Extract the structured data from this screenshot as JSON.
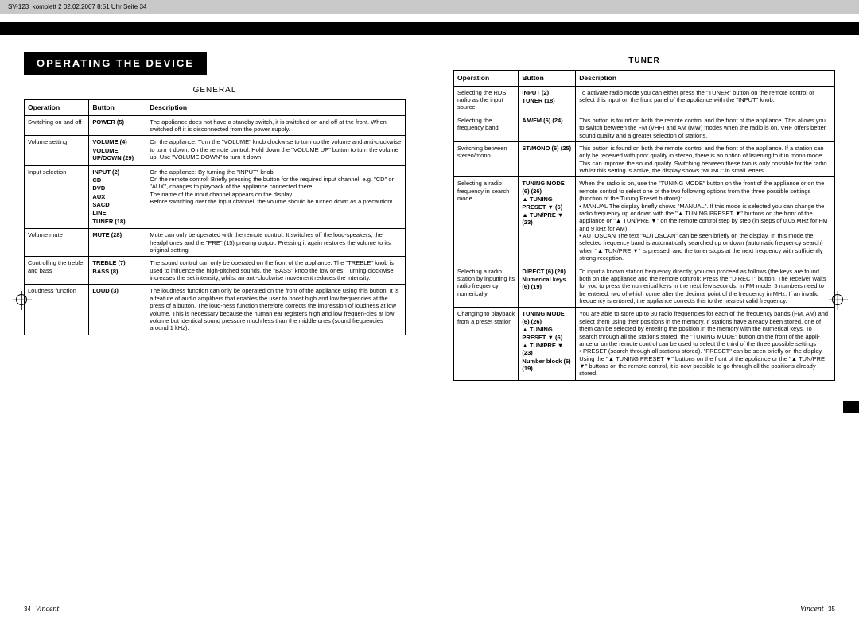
{
  "header_text": "SV-123_komplett 2  02.02.2007  8:51 Uhr  Seite 34",
  "section_title": "OPERATING THE DEVICE",
  "left": {
    "sub_title": "GENERAL",
    "columns": [
      "Operation",
      "Button",
      "Description"
    ],
    "rows": [
      {
        "op": "Switching on and off",
        "btn": [
          {
            "t": "POWER (5)"
          }
        ],
        "desc": "The appliance does not have a standby switch, it is switched on and off at the front. When switched off it is disconnected from the power supply."
      },
      {
        "op": "Volume setting",
        "btn": [
          {
            "t": "VOLUME (4)"
          },
          {
            "t": "VOLUME UP/DOWN (29)"
          }
        ],
        "desc": "On the appliance: Turn the \"VOLUME\" knob clockwise to turn up the volume and anti-clockwise to turn it down. On the remote control: Hold down the \"VOLUME UP\" button to turn the volume up. Use \"VOLUME DOWN\" to turn it down."
      },
      {
        "op": "Input selection",
        "btn": [
          {
            "t": "INPUT (2)"
          },
          {
            "t": "CD"
          },
          {
            "t": "DVD"
          },
          {
            "t": "AUX"
          },
          {
            "t": "SACD"
          },
          {
            "t": "LINE"
          },
          {
            "t": "TUNER (18)"
          }
        ],
        "desc": "On the appliance: By turning the \"INPUT\" knob.\nOn the remote control: Briefly pressing the button for the required input channel, e.g. \"CD\" or \"AUX\", changes to playback of the appliance connected there.\nThe name of the input channel appears on the display.\nBefore switching over the input channel, the volume should be turned down as a precaution!"
      },
      {
        "op": "Volume mute",
        "btn": [
          {
            "t": "MUTE (28)"
          }
        ],
        "desc": "Mute can only be operated with the remote control. It switches off the loud-speakers, the headphones and the \"PRE\" (15) preamp output. Pressing it again restores the volume to its original setting."
      },
      {
        "op": "Controlling the treble and bass",
        "btn": [
          {
            "t": "TREBLE (7)"
          },
          {
            "t": "BASS (8)"
          }
        ],
        "desc": "The sound control can only be operated on the front of the appliance. The \"TREBLE\" knob is used to influence the high-pitched sounds, the \"BASS\" knob the low ones. Turning clockwise increases the set intensity, whilst an anti-clockwise movement reduces the intensity."
      },
      {
        "op": "Loudness function",
        "btn": [
          {
            "t": "LOUD (3)"
          }
        ],
        "desc": "The loudness function can only be operated on the front of the appliance using this button. It is a feature of audio amplifiers that enables the user to boost high and low frequencies at the press of a button. The loud-ness function therefore corrects the impression of loudness at low volume. This is necessary because the human ear registers high and low frequen-cies at low volume but identical sound pressure much less than the middle ones (sound frequencies around 1 kHz)."
      }
    ],
    "page_num": "34",
    "brand": "Vincent"
  },
  "right": {
    "sub_title": "TUNER",
    "columns": [
      "Operation",
      "Button",
      "Description"
    ],
    "rows": [
      {
        "op": "Selecting the RDS radio as the input source",
        "btn": [
          {
            "t": "INPUT (2)"
          },
          {
            "t": "TUNER (18)"
          }
        ],
        "desc": "To activate radio mode you can either press the \"TUNER\" button on the remote control or select this input on the front panel of the appliance with the \"INPUT\" knob."
      },
      {
        "op": "Selecting the frequency band",
        "btn": [
          {
            "t": "AM/FM (6) (24)"
          }
        ],
        "desc": "This button is found on both the remote control and the front of the appliance. This allows you to switch between the FM (VHF) and AM (MW) modes when the radio is on. VHF offers better sound quality and a greater selection of stations."
      },
      {
        "op": "Switching between stereo/mono",
        "btn": [
          {
            "t": "ST/MONO (6) (25)"
          }
        ],
        "desc": "This button is found on both the remote control and the front of the appliance. If a station can only be received with poor quality in stereo, there is an option of listening to it in mono mode. This can improve the sound quality. Switching between these two is only possible for the radio. Whilst this setting is active, the display shows \"MONO\" in small letters."
      },
      {
        "op": "Selecting a radio frequency in search mode",
        "btn": [
          {
            "t": "TUNING MODE (6) (26)"
          },
          {
            "t": "▲ TUNING PRESET ▼ (6)"
          },
          {
            "t": "▲ TUN/PRE ▼ (23)"
          }
        ],
        "desc": "When the radio is on, use the \"TUNING MODE\" button on the front of the appliance or on the remote control to select one of the two following options from the three possible settings (function of the Tuning/Preset buttons):\n• MANUAL  The display briefly shows \"MANUAL\". If this mode is selected you can change the radio frequency up or down with the \"▲ TUNING PRESET ▼\" buttons on the front of the appliance or \"▲ TUN/PRE ▼\" on the remote control step by step (in steps of 0.05 MHz for FM and 9 kHz for AM).\n• AUTOSCAN  The text \"AUTOSCAN\" can be seen briefly on the display. In this mode the selected frequency band is automatically searched up or down (automatic frequency search) when \"▲ TUN/PRE ▼\" is pressed, and the tuner stops at the next frequency with sufficiently strong reception."
      },
      {
        "op": "Selecting a radio station by inputting its radio frequency numerically",
        "btn": [
          {
            "t": "DIRECT (6) (20)"
          },
          {
            "t": "Numerical keys (6) (19)"
          }
        ],
        "desc": "To input a known station frequency directly, you can proceed as follows (the keys are found both on the appliance and the remote control): Press the \"DIRECT\" button. The receiver waits for you to press the numerical keys in the next few seconds. In FM mode, 5 numbers need to be entered, two of which come after the decimal point of the frequency in MHz. If an invalid frequency is entered, the appliance corrects this to the nearest valid frequency."
      },
      {
        "op": "Changing to playback from a preset station",
        "btn": [
          {
            "t": "TUNING MODE (6) (26)"
          },
          {
            "t": "▲ TUNING PRESET ▼ (6)"
          },
          {
            "t": "▲ TUN/PRE ▼ (23)"
          },
          {
            "t": "Number block (6) (19)"
          }
        ],
        "desc": "You are able to store up to 30 radio frequencies for each of the frequency bands (FM, AM) and select them using their positions in the memory. If stations have already been stored, one of them can be selected by entering the position in the memory with the numerical keys. To search through all the stations stored, the \"TUNING MODE\" button on the front of the appli-ance or on the remote control can be used to select the third of the three possible settings\n• PRESET (search through all stations stored). \"PRESET\" can be seen briefly on the display. Using the \"▲ TUNING PRESET ▼\" buttons on the front of the appliance or the \"▲ TUN/PRE ▼\" buttons on the remote control, it is now possible to go through all the positions already stored."
      }
    ],
    "page_num": "35",
    "brand": "Vincent"
  }
}
